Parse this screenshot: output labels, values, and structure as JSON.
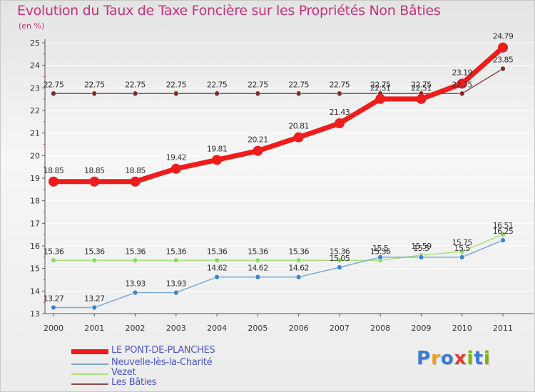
{
  "header": {
    "title": "Evolution du Taux de Taxe Foncière sur les Propriétés Non Bâties",
    "unit": "(en %)"
  },
  "logo": {
    "letters": [
      "P",
      "r",
      "o",
      "x",
      "i",
      "t",
      "i"
    ],
    "colors": [
      "#3a7bd5",
      "#f0a020",
      "#3a7bd5",
      "#e03c31",
      "#7ab800",
      "#3a7bd5",
      "#7ab800"
    ]
  },
  "legend": [
    {
      "label": "LE PONT-DE-PLANCHES",
      "color": "#ee1c1c"
    },
    {
      "label": "Neuvelle-lès-la-Charité",
      "color": "#7aaad2"
    },
    {
      "label": "Vezet",
      "color": "#a8e07a"
    },
    {
      "label": "Les Bâties",
      "color": "#8b4a4a"
    }
  ],
  "chart_data": {
    "type": "line",
    "title": "Evolution du Taux de Taxe Foncière sur les Propriétés Non Bâties",
    "ylabel": "(en %)",
    "ylim": [
      13,
      25
    ],
    "yticks": [
      "13",
      "14",
      "15",
      "16",
      "17",
      "18",
      "19",
      "20",
      "21",
      "22",
      "23",
      "24",
      "25"
    ],
    "categories": [
      "2000",
      "2001",
      "2002",
      "2003",
      "2004",
      "2005",
      "2006",
      "2007",
      "2008",
      "2009",
      "2010",
      "2011"
    ],
    "series": [
      {
        "name": "Les Bâties",
        "color": "#7a2a2a",
        "line": "#8b4a4a",
        "width": 1.5,
        "marker": 3.5,
        "values": [
          22.75,
          22.75,
          22.75,
          22.75,
          22.75,
          22.75,
          22.75,
          22.75,
          22.75,
          22.75,
          22.75,
          23.85
        ],
        "labels": [
          "22.75",
          "22.75",
          "22.75",
          "22.75",
          "22.75",
          "22.75",
          "22.75",
          "22.75",
          "22.75",
          "22.75",
          "22.75",
          "23.85"
        ]
      },
      {
        "name": "Vezet",
        "color": "#8fd860",
        "line": "#a8e07a",
        "width": 1.5,
        "marker": 3.5,
        "values": [
          15.36,
          15.36,
          15.36,
          15.36,
          15.36,
          15.36,
          15.36,
          15.36,
          15.36,
          15.59,
          15.75,
          16.51
        ],
        "labels": [
          "15.36",
          "15.36",
          "15.36",
          "15.36",
          "15.36",
          "15.36",
          "15.36",
          "15.36",
          "15.36",
          "15.59",
          "15.75",
          "16.51"
        ]
      },
      {
        "name": "Neuvelle-lès-la-Charité",
        "color": "#3b84d0",
        "line": "#7aaad2",
        "width": 1.5,
        "marker": 3.5,
        "values": [
          13.27,
          13.27,
          13.93,
          13.93,
          14.62,
          14.62,
          14.62,
          15.05,
          15.5,
          15.5,
          15.5,
          16.25
        ],
        "labels": [
          "13.27",
          "13.27",
          "13.93",
          "13.93",
          "14.62",
          "14.62",
          "14.62",
          "15.05",
          "15.5",
          "15.5",
          "15.5",
          "16.25"
        ]
      },
      {
        "name": "LE PONT-DE-PLANCHES",
        "color": "#ee1c1c",
        "line": "#ee1c1c",
        "width": 7,
        "marker": 7,
        "values": [
          18.85,
          18.85,
          18.85,
          19.42,
          19.81,
          20.21,
          20.81,
          21.43,
          22.51,
          22.51,
          23.19,
          24.79
        ],
        "labels": [
          "18.85",
          "18.85",
          "18.85",
          "19.42",
          "19.81",
          "20.21",
          "20.81",
          "21.43",
          "22.51",
          "22.51",
          "23.19",
          "24.79"
        ]
      }
    ]
  }
}
